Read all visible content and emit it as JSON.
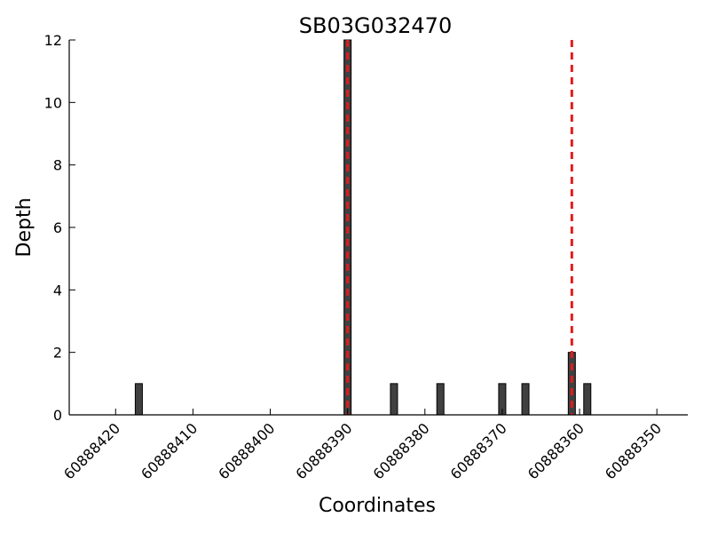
{
  "chart_data": {
    "type": "bar",
    "title": "SB03G032470",
    "xlabel": "Coordinates",
    "ylabel": "Depth",
    "x_axis_reversed": true,
    "xlim": [
      60888426,
      60888346
    ],
    "ylim": [
      0,
      12
    ],
    "x_ticks": [
      60888420,
      60888410,
      60888400,
      60888390,
      60888380,
      60888370,
      60888360,
      60888350
    ],
    "y_ticks": [
      0,
      2,
      4,
      6,
      8,
      10,
      12
    ],
    "bars": [
      {
        "x": 60888417,
        "value": 1
      },
      {
        "x": 60888390,
        "value": 12
      },
      {
        "x": 60888384,
        "value": 1
      },
      {
        "x": 60888378,
        "value": 1
      },
      {
        "x": 60888370,
        "value": 1
      },
      {
        "x": 60888367,
        "value": 1
      },
      {
        "x": 60888361,
        "value": 2
      },
      {
        "x": 60888359,
        "value": 1
      }
    ],
    "reference_lines": [
      {
        "x": 60888390,
        "color": "#e41a1c",
        "style": "dashed"
      },
      {
        "x": 60888361,
        "color": "#e41a1c",
        "style": "dashed"
      }
    ],
    "bar_color": "#404040",
    "grid": false
  }
}
